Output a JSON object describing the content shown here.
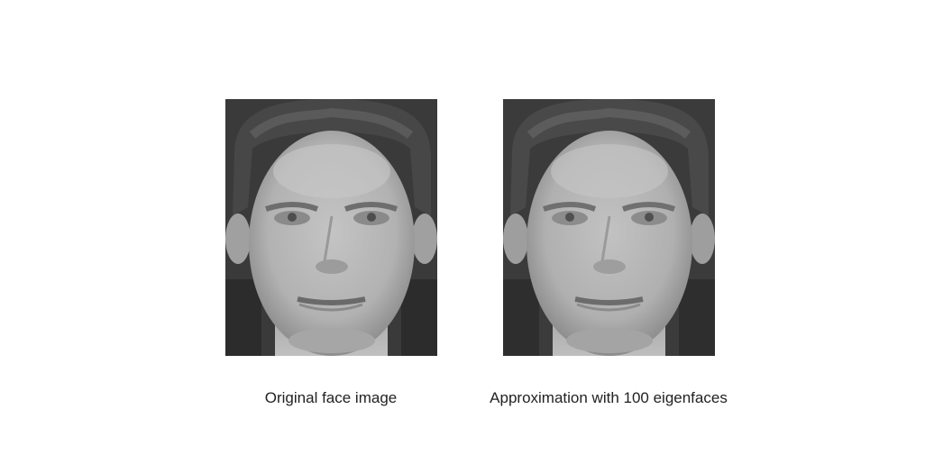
{
  "panels": [
    {
      "caption": "Original face image",
      "image_kind": "grayscale-face-photo"
    },
    {
      "caption": "Approximation with 100 eigenfaces",
      "image_kind": "grayscale-face-reconstruction"
    }
  ],
  "colors": {
    "background": "#ffffff",
    "caption_text": "#222222",
    "dark_bg": "#3c3c3c",
    "skin": "#b4b4b4"
  }
}
